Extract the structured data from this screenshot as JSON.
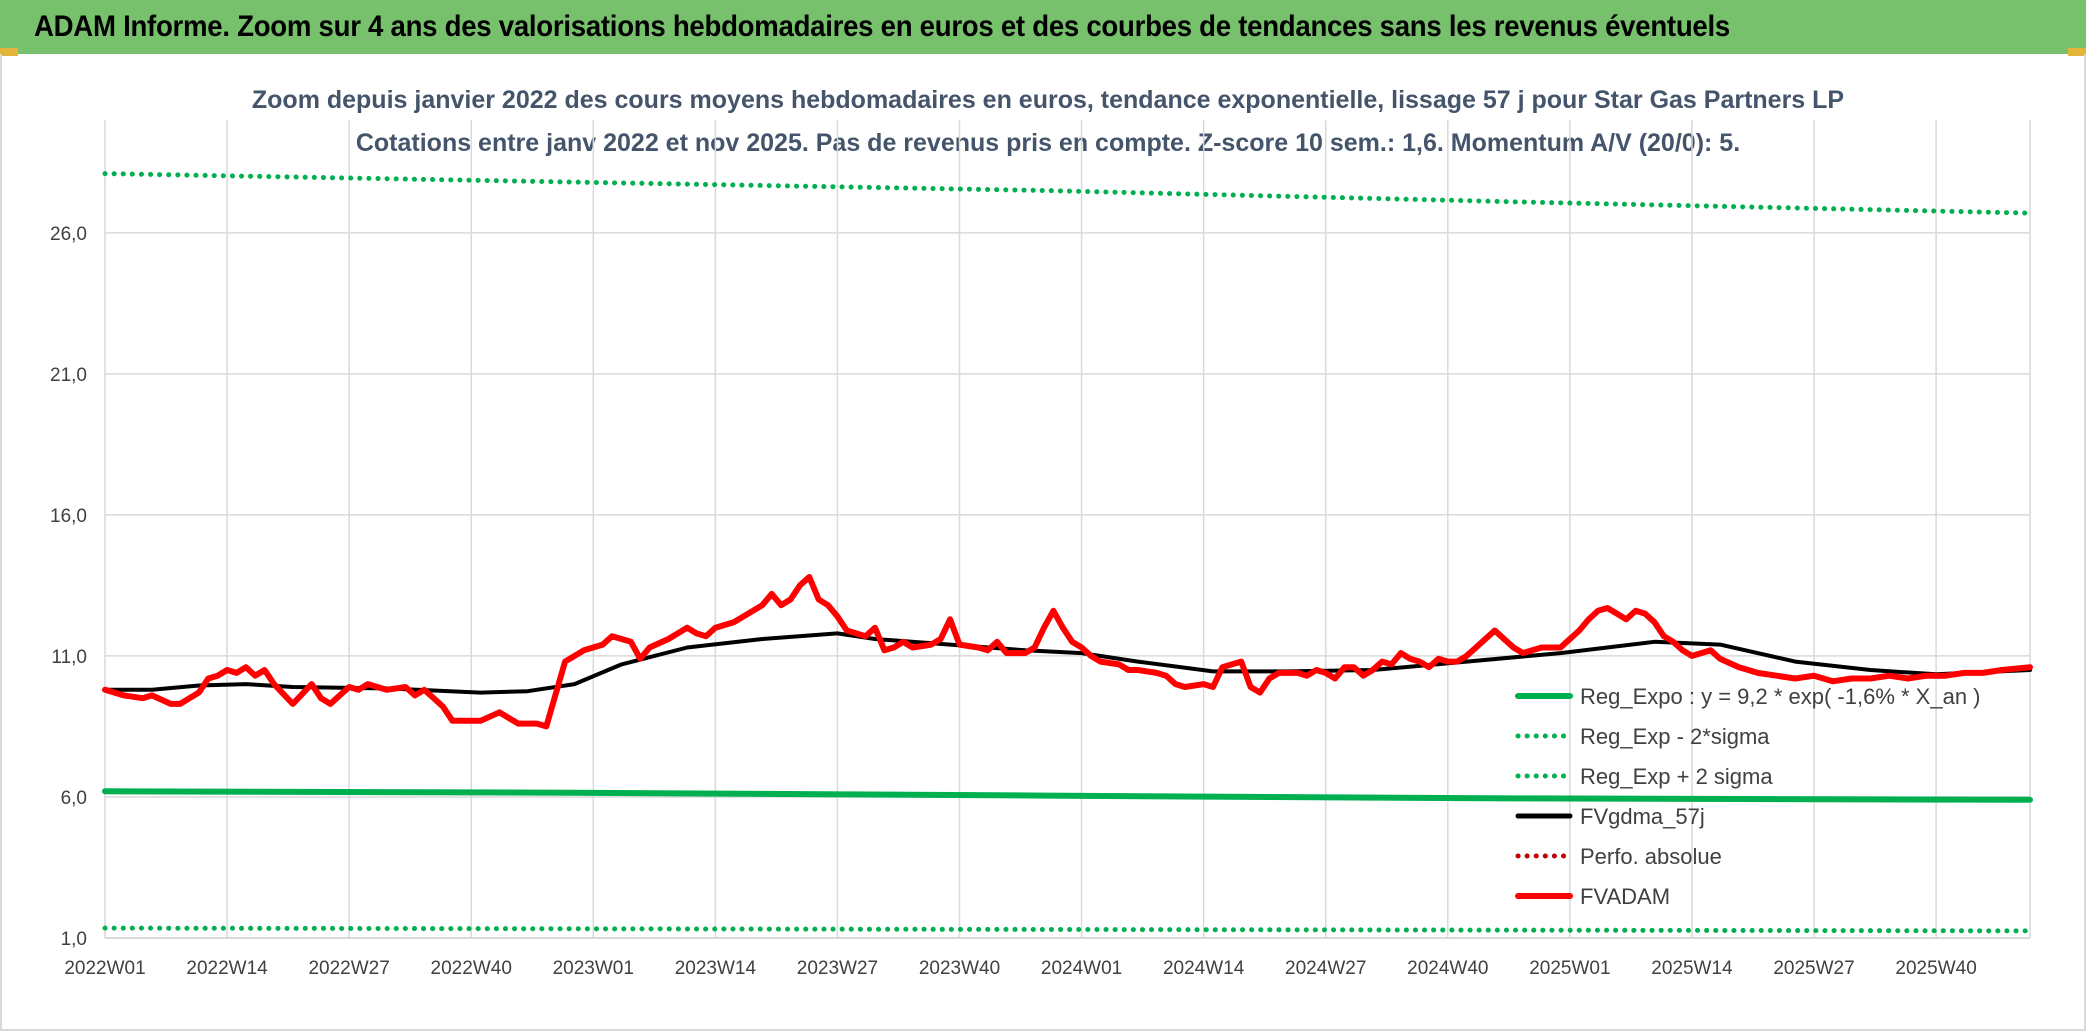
{
  "header": {
    "title": "ADAM Informe. Zoom sur 4 ans des valorisations hebdomadaires en euros et des courbes de tendances sans les revenus éventuels"
  },
  "chart_data": {
    "type": "line",
    "title": "Zoom depuis janvier 2022 des cours moyens hebdomadaires en euros, tendance exponentielle, lissage 57 j pour Star Gas Partners LP",
    "subtitle": "Cotations entre janv 2022 et nov 2025. Pas de revenus pris en compte. Z-score 10 sem.: 1,6. Momentum A/V (20/0): 5.",
    "xlabel": "",
    "ylabel": "",
    "ylim": [
      1,
      30
    ],
    "yticks": [
      "1,0",
      "6,0",
      "11,0",
      "16,0",
      "21,0",
      "26,0"
    ],
    "ytick_values": [
      1,
      6,
      11,
      16,
      21,
      26
    ],
    "xticks": [
      "2022W01",
      "2022W14",
      "2022W27",
      "2022W40",
      "2023W01",
      "2023W14",
      "2023W27",
      "2023W40",
      "2024W01",
      "2024W14",
      "2024W27",
      "2024W40",
      "2025W01",
      "2025W14",
      "2025W27",
      "2025W40"
    ],
    "xtick_weeks": [
      0,
      13,
      26,
      39,
      52,
      65,
      78,
      91,
      104,
      117,
      130,
      143,
      156,
      169,
      182,
      195
    ],
    "week_count": 205,
    "legend": {
      "position": "right",
      "entries": [
        {
          "label": "Reg_Expo : y = 9,2 * exp( -1,6% * X_an )",
          "color": "#00b050",
          "style": "solid"
        },
        {
          "label": "Reg_Exp - 2*sigma",
          "color": "#00b050",
          "style": "dotted"
        },
        {
          "label": "Reg_Exp + 2 sigma",
          "color": "#00b050",
          "style": "dotted"
        },
        {
          "label": "FVgdma_57j",
          "color": "#000000",
          "style": "solid"
        },
        {
          "label": "Perfo. absolue",
          "color": "#c00000",
          "style": "dotted"
        },
        {
          "label": "FVADAM",
          "color": "#ff0000",
          "style": "solid"
        }
      ]
    },
    "series": [
      {
        "name": "Reg_Expo : y = 9,2 * exp( -1,6% * X_an )",
        "color": "#00b050",
        "style": "solid",
        "points": [
          [
            0,
            6.2
          ],
          [
            50,
            6.15
          ],
          [
            100,
            6.05
          ],
          [
            150,
            5.95
          ],
          [
            205,
            5.9
          ]
        ]
      },
      {
        "name": "Reg_Exp - 2*sigma",
        "color": "#00b050",
        "style": "dotted",
        "points": [
          [
            0,
            1.35
          ],
          [
            205,
            1.25
          ]
        ]
      },
      {
        "name": "Reg_Exp + 2 sigma",
        "color": "#00b050",
        "style": "dotted",
        "points": [
          [
            0,
            28.1
          ],
          [
            50,
            27.8
          ],
          [
            100,
            27.5
          ],
          [
            150,
            27.1
          ],
          [
            205,
            26.7
          ]
        ]
      },
      {
        "name": "FVgdma_57j",
        "color": "#000000",
        "style": "solid",
        "points": [
          [
            0,
            9.8
          ],
          [
            5,
            9.8
          ],
          [
            10,
            9.95
          ],
          [
            15,
            10.0
          ],
          [
            20,
            9.9
          ],
          [
            30,
            9.85
          ],
          [
            40,
            9.7
          ],
          [
            45,
            9.75
          ],
          [
            50,
            10.0
          ],
          [
            55,
            10.7
          ],
          [
            62,
            11.3
          ],
          [
            70,
            11.6
          ],
          [
            78,
            11.8
          ],
          [
            82,
            11.6
          ],
          [
            90,
            11.4
          ],
          [
            98,
            11.2
          ],
          [
            104,
            11.1
          ],
          [
            110,
            10.8
          ],
          [
            118,
            10.45
          ],
          [
            126,
            10.45
          ],
          [
            135,
            10.5
          ],
          [
            145,
            10.8
          ],
          [
            155,
            11.1
          ],
          [
            165,
            11.5
          ],
          [
            172,
            11.4
          ],
          [
            180,
            10.8
          ],
          [
            188,
            10.5
          ],
          [
            195,
            10.35
          ],
          [
            205,
            10.5
          ]
        ]
      },
      {
        "name": "Perfo. absolue",
        "color": "#c00000",
        "style": "dotted",
        "points": []
      },
      {
        "name": "FVADAM",
        "color": "#ff0000",
        "style": "solid",
        "points": [
          [
            0,
            9.8
          ],
          [
            2,
            9.6
          ],
          [
            4,
            9.5
          ],
          [
            5,
            9.6
          ],
          [
            7,
            9.3
          ],
          [
            8,
            9.3
          ],
          [
            9,
            9.5
          ],
          [
            10,
            9.7
          ],
          [
            11,
            10.2
          ],
          [
            12,
            10.3
          ],
          [
            13,
            10.5
          ],
          [
            14,
            10.4
          ],
          [
            15,
            10.6
          ],
          [
            16,
            10.3
          ],
          [
            17,
            10.5
          ],
          [
            18,
            10.0
          ],
          [
            20,
            9.3
          ],
          [
            22,
            10.0
          ],
          [
            23,
            9.5
          ],
          [
            24,
            9.3
          ],
          [
            26,
            9.9
          ],
          [
            27,
            9.8
          ],
          [
            28,
            10.0
          ],
          [
            29,
            9.9
          ],
          [
            30,
            9.8
          ],
          [
            32,
            9.9
          ],
          [
            33,
            9.6
          ],
          [
            34,
            9.8
          ],
          [
            35,
            9.5
          ],
          [
            36,
            9.2
          ],
          [
            37,
            8.7
          ],
          [
            40,
            8.7
          ],
          [
            42,
            9.0
          ],
          [
            44,
            8.6
          ],
          [
            46,
            8.6
          ],
          [
            47,
            8.5
          ],
          [
            49,
            10.8
          ],
          [
            51,
            11.2
          ],
          [
            53,
            11.4
          ],
          [
            54,
            11.7
          ],
          [
            55,
            11.6
          ],
          [
            56,
            11.5
          ],
          [
            57,
            10.9
          ],
          [
            58,
            11.3
          ],
          [
            60,
            11.6
          ],
          [
            62,
            12.0
          ],
          [
            63,
            11.8
          ],
          [
            64,
            11.7
          ],
          [
            65,
            12.0
          ],
          [
            67,
            12.2
          ],
          [
            69,
            12.6
          ],
          [
            70,
            12.8
          ],
          [
            71,
            13.2
          ],
          [
            72,
            12.8
          ],
          [
            73,
            13.0
          ],
          [
            74,
            13.5
          ],
          [
            75,
            13.8
          ],
          [
            76,
            13.0
          ],
          [
            77,
            12.8
          ],
          [
            78,
            12.4
          ],
          [
            79,
            11.9
          ],
          [
            80,
            11.8
          ],
          [
            81,
            11.7
          ],
          [
            82,
            12.0
          ],
          [
            83,
            11.2
          ],
          [
            84,
            11.3
          ],
          [
            85,
            11.5
          ],
          [
            86,
            11.3
          ],
          [
            88,
            11.4
          ],
          [
            89,
            11.6
          ],
          [
            90,
            12.3
          ],
          [
            91,
            11.4
          ],
          [
            93,
            11.3
          ],
          [
            94,
            11.2
          ],
          [
            95,
            11.5
          ],
          [
            96,
            11.1
          ],
          [
            98,
            11.1
          ],
          [
            99,
            11.3
          ],
          [
            100,
            12.0
          ],
          [
            101,
            12.6
          ],
          [
            102,
            12.0
          ],
          [
            103,
            11.5
          ],
          [
            104,
            11.3
          ],
          [
            105,
            11.0
          ],
          [
            106,
            10.8
          ],
          [
            108,
            10.7
          ],
          [
            109,
            10.5
          ],
          [
            110,
            10.5
          ],
          [
            112,
            10.4
          ],
          [
            113,
            10.3
          ],
          [
            114,
            10.0
          ],
          [
            115,
            9.9
          ],
          [
            117,
            10.0
          ],
          [
            118,
            9.9
          ],
          [
            119,
            10.6
          ],
          [
            120,
            10.7
          ],
          [
            121,
            10.8
          ],
          [
            122,
            9.9
          ],
          [
            123,
            9.7
          ],
          [
            124,
            10.2
          ],
          [
            125,
            10.4
          ],
          [
            127,
            10.4
          ],
          [
            128,
            10.3
          ],
          [
            129,
            10.5
          ],
          [
            130,
            10.4
          ],
          [
            131,
            10.2
          ],
          [
            132,
            10.6
          ],
          [
            133,
            10.6
          ],
          [
            134,
            10.3
          ],
          [
            135,
            10.5
          ],
          [
            136,
            10.8
          ],
          [
            137,
            10.7
          ],
          [
            138,
            11.1
          ],
          [
            139,
            10.9
          ],
          [
            140,
            10.8
          ],
          [
            141,
            10.6
          ],
          [
            142,
            10.9
          ],
          [
            143,
            10.8
          ],
          [
            144,
            10.8
          ],
          [
            145,
            11.0
          ],
          [
            146,
            11.3
          ],
          [
            147,
            11.6
          ],
          [
            148,
            11.9
          ],
          [
            149,
            11.6
          ],
          [
            150,
            11.3
          ],
          [
            151,
            11.1
          ],
          [
            152,
            11.2
          ],
          [
            153,
            11.3
          ],
          [
            154,
            11.3
          ],
          [
            155,
            11.3
          ],
          [
            156,
            11.6
          ],
          [
            157,
            11.9
          ],
          [
            158,
            12.3
          ],
          [
            159,
            12.6
          ],
          [
            160,
            12.7
          ],
          [
            161,
            12.5
          ],
          [
            162,
            12.3
          ],
          [
            163,
            12.6
          ],
          [
            164,
            12.5
          ],
          [
            165,
            12.2
          ],
          [
            166,
            11.7
          ],
          [
            167,
            11.5
          ],
          [
            168,
            11.2
          ],
          [
            169,
            11.0
          ],
          [
            170,
            11.1
          ],
          [
            171,
            11.2
          ],
          [
            172,
            10.9
          ],
          [
            174,
            10.6
          ],
          [
            175,
            10.5
          ],
          [
            176,
            10.4
          ],
          [
            178,
            10.3
          ],
          [
            180,
            10.2
          ],
          [
            182,
            10.3
          ],
          [
            184,
            10.1
          ],
          [
            186,
            10.2
          ],
          [
            188,
            10.2
          ],
          [
            190,
            10.3
          ],
          [
            192,
            10.2
          ],
          [
            194,
            10.3
          ],
          [
            196,
            10.3
          ],
          [
            198,
            10.4
          ],
          [
            200,
            10.4
          ],
          [
            202,
            10.5
          ],
          [
            205,
            10.6
          ]
        ]
      }
    ]
  }
}
